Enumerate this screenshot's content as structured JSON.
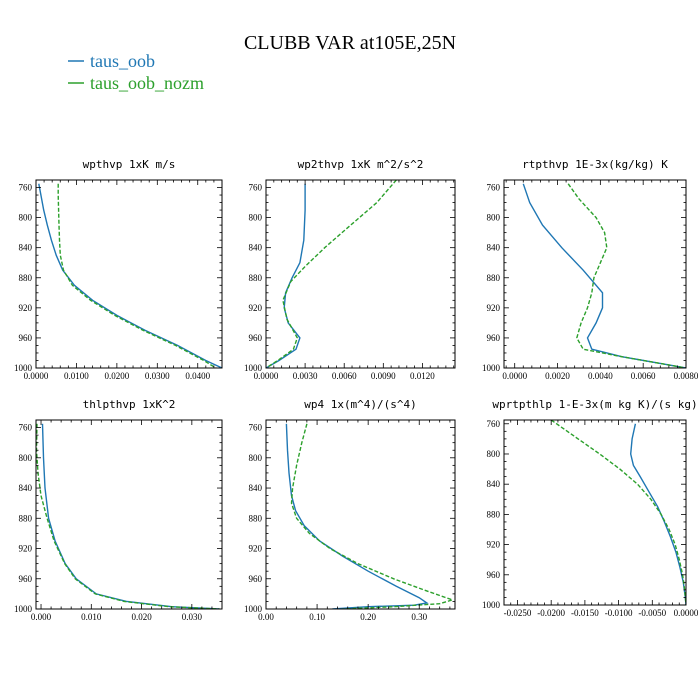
{
  "title": "CLUBB VAR at105E,25N",
  "legend": [
    {
      "label": "taus_oob",
      "color": "#1f77b4"
    },
    {
      "label": "taus_oob_nozm",
      "color": "#2ca02c"
    }
  ],
  "chart_data": [
    {
      "type": "line",
      "title": "wpthvp   1xK m/s",
      "ylim": [
        1000,
        750
      ],
      "yticks": [
        760,
        800,
        840,
        880,
        920,
        960,
        1000
      ],
      "xlim": [
        0,
        0.046
      ],
      "xticks": [
        0,
        0.01,
        0.02,
        0.03,
        0.04
      ],
      "xticklabels": [
        "0.0000",
        "0.0100",
        "0.0200",
        "0.0300",
        "0.0400"
      ],
      "series": [
        {
          "name": "taus_oob",
          "y": [
            755,
            770,
            790,
            810,
            830,
            850,
            870,
            890,
            910,
            930,
            950,
            970,
            990,
            1000
          ],
          "x": [
            0.0007,
            0.0012,
            0.0019,
            0.0028,
            0.0038,
            0.005,
            0.0066,
            0.0095,
            0.014,
            0.02,
            0.027,
            0.035,
            0.042,
            0.046
          ]
        },
        {
          "name": "taus_oob_nozm",
          "y": [
            755,
            770,
            790,
            810,
            830,
            850,
            870,
            890,
            910,
            930,
            950,
            970,
            990,
            1000
          ],
          "x": [
            0.0055,
            0.0055,
            0.0056,
            0.0057,
            0.0058,
            0.006,
            0.0068,
            0.009,
            0.0135,
            0.0195,
            0.0265,
            0.0345,
            0.0415,
            0.0445
          ]
        }
      ]
    },
    {
      "type": "line",
      "title": "wp2thvp   1xK m^2/s^2",
      "ylim": [
        1000,
        750
      ],
      "yticks": [
        760,
        800,
        840,
        880,
        920,
        960,
        1000
      ],
      "xlim": [
        0,
        0.0145
      ],
      "xticks": [
        0,
        0.003,
        0.006,
        0.009,
        0.012
      ],
      "xticklabels": [
        "0.0000",
        "0.0030",
        "0.0060",
        "0.0090",
        "0.0120"
      ],
      "series": [
        {
          "name": "taus_oob",
          "y": [
            755,
            790,
            830,
            860,
            880,
            900,
            920,
            940,
            960,
            975,
            990,
            1000
          ],
          "x": [
            0.003,
            0.003,
            0.0029,
            0.0026,
            0.002,
            0.0015,
            0.0014,
            0.0017,
            0.0026,
            0.0023,
            0.001,
            0.0
          ]
        },
        {
          "name": "taus_oob_nozm",
          "y": [
            750,
            780,
            810,
            840,
            865,
            885,
            910,
            935,
            960,
            975,
            990,
            1000
          ],
          "x": [
            0.01,
            0.0085,
            0.0065,
            0.0045,
            0.003,
            0.0019,
            0.0013,
            0.0016,
            0.0024,
            0.0021,
            0.0009,
            0.0
          ]
        }
      ]
    },
    {
      "type": "line",
      "title": "rtpthvp   1E-3x(kg/kg) K",
      "ylim": [
        1000,
        750
      ],
      "yticks": [
        760,
        800,
        840,
        880,
        920,
        960,
        1000
      ],
      "xlim": [
        -0.0005,
        0.008
      ],
      "xticks": [
        0,
        0.002,
        0.004,
        0.006,
        0.008
      ],
      "xticklabels": [
        "0.0000",
        "0.0020",
        "0.0040",
        "0.0060",
        "0.0080"
      ],
      "series": [
        {
          "name": "taus_oob",
          "y": [
            755,
            780,
            810,
            840,
            870,
            900,
            920,
            940,
            960,
            975,
            985,
            995,
            1000
          ],
          "x": [
            0.0004,
            0.0007,
            0.0013,
            0.0022,
            0.0032,
            0.0041,
            0.0041,
            0.0038,
            0.0034,
            0.0036,
            0.005,
            0.007,
            0.008
          ]
        },
        {
          "name": "taus_oob_nozm",
          "y": [
            755,
            775,
            800,
            820,
            840,
            860,
            880,
            900,
            920,
            940,
            960,
            975,
            985,
            995,
            1000
          ],
          "x": [
            0.0025,
            0.003,
            0.0038,
            0.0042,
            0.0043,
            0.004,
            0.0037,
            0.0036,
            0.0034,
            0.0031,
            0.0029,
            0.0032,
            0.005,
            0.007,
            0.008
          ]
        }
      ]
    },
    {
      "type": "line",
      "title": "thlpthvp   1xK^2",
      "ylim": [
        1000,
        750
      ],
      "yticks": [
        760,
        800,
        840,
        880,
        920,
        960,
        1000
      ],
      "xlim": [
        -0.001,
        0.036
      ],
      "xticks": [
        0,
        0.01,
        0.02,
        0.03
      ],
      "xticklabels": [
        "0.000",
        "0.010",
        "0.020",
        "0.030"
      ],
      "series": [
        {
          "name": "taus_oob",
          "y": [
            755,
            800,
            840,
            880,
            910,
            940,
            960,
            980,
            990,
            997,
            1000
          ],
          "x": [
            0.0003,
            0.0005,
            0.0008,
            0.0015,
            0.0028,
            0.0048,
            0.007,
            0.011,
            0.017,
            0.026,
            0.0355
          ]
        },
        {
          "name": "taus_oob_nozm",
          "y": [
            755,
            790,
            820,
            850,
            880,
            910,
            940,
            960,
            980,
            990,
            997,
            1000
          ],
          "x": [
            -0.0008,
            -0.0009,
            -0.0006,
            0.0,
            0.0012,
            0.0026,
            0.0047,
            0.0068,
            0.0108,
            0.0165,
            0.0255,
            0.0355
          ]
        }
      ]
    },
    {
      "type": "line",
      "title": "wp4   1x(m^4)/(s^4)",
      "ylim": [
        1000,
        750
      ],
      "yticks": [
        760,
        800,
        840,
        880,
        920,
        960,
        1000
      ],
      "xlim": [
        0,
        0.37
      ],
      "xticks": [
        0,
        0.1,
        0.2,
        0.3
      ],
      "xticklabels": [
        "0.00",
        "0.10",
        "0.20",
        "0.30"
      ],
      "series": [
        {
          "name": "taus_oob",
          "y": [
            755,
            790,
            820,
            850,
            870,
            890,
            910,
            930,
            950,
            970,
            985,
            992,
            995,
            997,
            1000
          ],
          "x": [
            0.04,
            0.042,
            0.045,
            0.05,
            0.058,
            0.075,
            0.105,
            0.15,
            0.2,
            0.255,
            0.3,
            0.315,
            0.29,
            0.2,
            0.13
          ]
        },
        {
          "name": "taus_oob_nozm",
          "y": [
            755,
            780,
            810,
            840,
            860,
            880,
            900,
            920,
            940,
            960,
            975,
            988,
            993,
            997,
            1000
          ],
          "x": [
            0.08,
            0.07,
            0.06,
            0.052,
            0.05,
            0.06,
            0.085,
            0.125,
            0.18,
            0.25,
            0.31,
            0.365,
            0.34,
            0.25,
            0.15
          ]
        }
      ]
    },
    {
      "type": "line",
      "title": "wprtpthlp   1-E-3x(m kg K)/(s kg)",
      "ylim": [
        1000,
        755
      ],
      "yticks": [
        760,
        800,
        840,
        880,
        920,
        960,
        1000
      ],
      "xlim": [
        -0.027,
        0.0
      ],
      "xticks": [
        -0.025,
        -0.02,
        -0.015,
        -0.01,
        -0.005,
        0.0
      ],
      "xticklabels": [
        "-0.0250",
        "-0.0200",
        "-0.0150",
        "-0.0100",
        "-0.0050",
        "0.0000"
      ],
      "series": [
        {
          "name": "taus_oob",
          "y": [
            760,
            780,
            800,
            815,
            830,
            850,
            870,
            890,
            910,
            930,
            950,
            970,
            990,
            1000
          ],
          "x": [
            -0.0075,
            -0.008,
            -0.0082,
            -0.0078,
            -0.0068,
            -0.0055,
            -0.0042,
            -0.0032,
            -0.0023,
            -0.0015,
            -0.0009,
            -0.0004,
            -0.0001,
            0.0
          ]
        },
        {
          "name": "taus_oob_nozm",
          "y": [
            755,
            780,
            800,
            820,
            840,
            860,
            880,
            900,
            920,
            940,
            960,
            980,
            1000
          ],
          "x": [
            -0.02,
            -0.016,
            -0.0128,
            -0.0098,
            -0.0072,
            -0.0052,
            -0.0037,
            -0.0025,
            -0.0016,
            -0.001,
            -0.0005,
            -0.0002,
            0.0
          ]
        }
      ]
    }
  ]
}
